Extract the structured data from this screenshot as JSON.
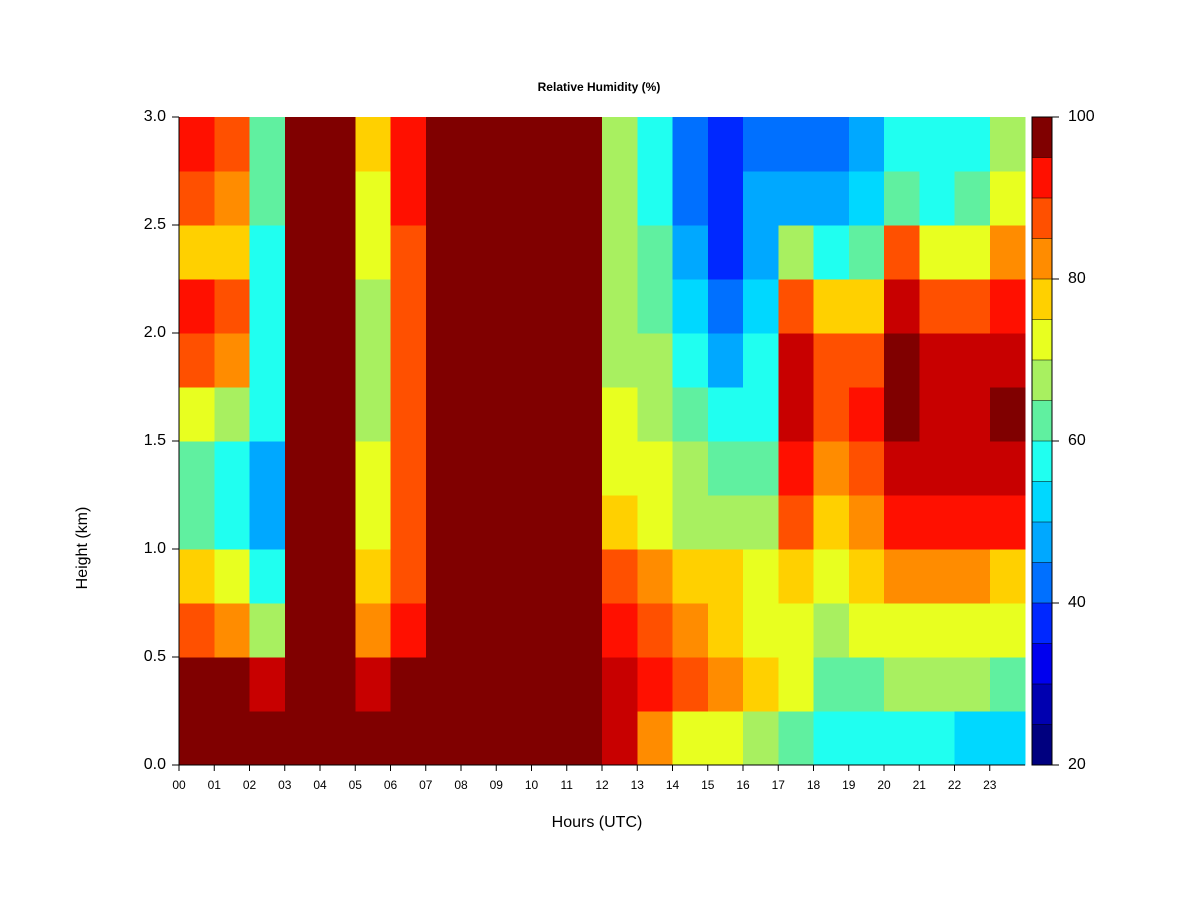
{
  "chart_data": {
    "type": "heatmap",
    "title": "Relative Humidity (%)",
    "x_label": "Hours (UTC)",
    "y_label": "Height (km)",
    "xlim": [
      0,
      24
    ],
    "ylim": [
      0,
      3
    ],
    "x_bins": [
      0,
      1,
      2,
      3,
      4,
      5,
      6,
      7,
      8,
      9,
      10,
      11,
      12,
      13,
      14,
      15,
      16,
      17,
      18,
      19,
      20,
      21,
      22,
      23,
      24
    ],
    "y_bins": [
      0,
      0.25,
      0.5,
      0.75,
      1,
      1.25,
      1.5,
      1.75,
      2,
      2.25,
      2.5,
      2.75,
      3
    ],
    "xticks": [
      {
        "value": 0,
        "label": "00"
      },
      {
        "value": 1,
        "label": "01"
      },
      {
        "value": 2,
        "label": "02"
      },
      {
        "value": 3,
        "label": "03"
      },
      {
        "value": 4,
        "label": "04"
      },
      {
        "value": 5,
        "label": "05"
      },
      {
        "value": 6,
        "label": "06"
      },
      {
        "value": 7,
        "label": "07"
      },
      {
        "value": 8,
        "label": "08"
      },
      {
        "value": 9,
        "label": "09"
      },
      {
        "value": 10,
        "label": "10"
      },
      {
        "value": 11,
        "label": "11"
      },
      {
        "value": 12,
        "label": "12"
      },
      {
        "value": 13,
        "label": "13"
      },
      {
        "value": 14,
        "label": "14"
      },
      {
        "value": 15,
        "label": "15"
      },
      {
        "value": 16,
        "label": "16"
      },
      {
        "value": 17,
        "label": "17"
      },
      {
        "value": 18,
        "label": "18"
      },
      {
        "value": 19,
        "label": "19"
      },
      {
        "value": 20,
        "label": "20"
      },
      {
        "value": 21,
        "label": "21"
      },
      {
        "value": 22,
        "label": "22"
      },
      {
        "value": 23,
        "label": "23"
      }
    ],
    "yticks": [
      {
        "value": 0,
        "label": "0.0"
      },
      {
        "value": 0.5,
        "label": "0.5"
      },
      {
        "value": 1,
        "label": "1.0"
      },
      {
        "value": 1.5,
        "label": "1.5"
      },
      {
        "value": 2,
        "label": "2.0"
      },
      {
        "value": 2.5,
        "label": "2.5"
      },
      {
        "value": 3,
        "label": "3.0"
      }
    ],
    "values": [
      [
        100,
        100,
        100,
        100,
        100,
        100,
        100,
        100,
        100,
        100,
        100,
        100,
        95,
        80,
        70,
        70,
        65,
        60,
        55,
        55,
        55,
        55,
        52,
        50
      ],
      [
        100,
        100,
        95,
        100,
        100,
        95,
        100,
        100,
        100,
        100,
        100,
        100,
        95,
        90,
        85,
        80,
        75,
        70,
        62,
        62,
        65,
        65,
        65,
        62
      ],
      [
        85,
        82,
        65,
        100,
        100,
        80,
        90,
        100,
        100,
        100,
        100,
        100,
        90,
        85,
        80,
        78,
        72,
        70,
        68,
        70,
        72,
        72,
        72,
        70
      ],
      [
        75,
        70,
        55,
        100,
        100,
        75,
        85,
        100,
        100,
        100,
        100,
        100,
        85,
        80,
        75,
        75,
        70,
        78,
        72,
        75,
        82,
        80,
        80,
        78
      ],
      [
        62,
        55,
        45,
        100,
        100,
        70,
        85,
        100,
        100,
        100,
        100,
        100,
        75,
        72,
        68,
        65,
        65,
        85,
        75,
        80,
        92,
        92,
        92,
        90
      ],
      [
        60,
        58,
        48,
        100,
        100,
        70,
        85,
        100,
        100,
        100,
        100,
        100,
        72,
        70,
        65,
        62,
        62,
        92,
        82,
        85,
        97,
        97,
        97,
        97
      ],
      [
        70,
        65,
        55,
        100,
        100,
        68,
        88,
        100,
        100,
        100,
        100,
        100,
        70,
        68,
        60,
        58,
        58,
        95,
        85,
        90,
        100,
        98,
        98,
        100
      ],
      [
        88,
        82,
        55,
        100,
        100,
        65,
        85,
        100,
        100,
        100,
        100,
        100,
        68,
        65,
        55,
        48,
        55,
        95,
        85,
        88,
        100,
        95,
        95,
        97
      ],
      [
        90,
        85,
        58,
        100,
        100,
        68,
        85,
        100,
        100,
        100,
        100,
        100,
        68,
        62,
        50,
        42,
        50,
        88,
        75,
        78,
        95,
        88,
        88,
        92
      ],
      [
        78,
        75,
        55,
        100,
        100,
        70,
        88,
        100,
        100,
        100,
        100,
        100,
        68,
        60,
        45,
        38,
        48,
        65,
        55,
        60,
        85,
        70,
        70,
        82
      ],
      [
        88,
        80,
        60,
        100,
        100,
        72,
        90,
        100,
        100,
        100,
        100,
        100,
        66,
        58,
        42,
        36,
        45,
        45,
        45,
        50,
        62,
        58,
        60,
        72
      ],
      [
        92,
        88,
        62,
        100,
        100,
        75,
        90,
        100,
        100,
        100,
        100,
        100,
        65,
        55,
        40,
        35,
        42,
        40,
        40,
        45,
        55,
        55,
        55,
        65
      ]
    ],
    "colorbar": {
      "levels": [
        20,
        25,
        30,
        35,
        40,
        45,
        50,
        55,
        60,
        65,
        70,
        75,
        80,
        85,
        90,
        95,
        100
      ],
      "colors": [
        "#00007f",
        "#0000b0",
        "#0000ee",
        "#0028ff",
        "#0070ff",
        "#00a8ff",
        "#00d8ff",
        "#20fff0",
        "#60f0a0",
        "#a8f060",
        "#e8ff20",
        "#ffd000",
        "#ff8c00",
        "#ff5000",
        "#ff1000",
        "#c80000"
      ],
      "top_color": "#800000",
      "ticks": [
        20,
        40,
        60,
        80,
        100
      ]
    }
  }
}
